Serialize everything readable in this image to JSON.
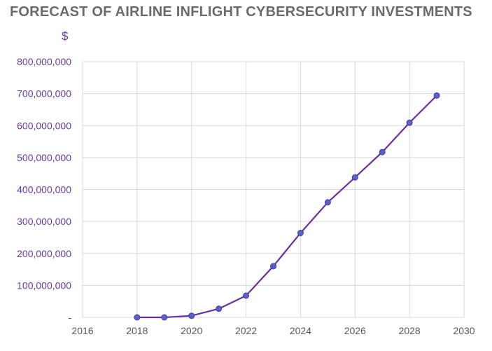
{
  "title": "FORECAST OF AIRLINE INFLIGHT CYBERSECURITY  INVESTMENTS",
  "chart_data": {
    "type": "line",
    "title": "FORECAST OF AIRLINE INFLIGHT CYBERSECURITY  INVESTMENTS",
    "ylabel": "$",
    "xlabel": "",
    "xlim": [
      2016,
      2030
    ],
    "ylim": [
      0,
      800000000
    ],
    "grid": true,
    "x_ticks": [
      2016,
      2018,
      2020,
      2022,
      2024,
      2026,
      2028,
      2030
    ],
    "x_tick_labels": [
      "2016",
      "2018",
      "2020",
      "2022",
      "2024",
      "2026",
      "2028",
      "2030"
    ],
    "y_ticks": [
      0,
      100000000,
      200000000,
      300000000,
      400000000,
      500000000,
      600000000,
      700000000,
      800000000
    ],
    "y_tick_labels": [
      "-",
      "100,000,000",
      "200,000,000",
      "300,000,000",
      "400,000,000",
      "500,000,000",
      "600,000,000",
      "700,000,000",
      "800,000,000"
    ],
    "series": [
      {
        "x": [
          2018,
          2019,
          2020,
          2021,
          2022,
          2023,
          2024,
          2025,
          2026,
          2027,
          2028,
          2029
        ],
        "values": [
          0,
          0,
          5000000,
          27000000,
          68000000,
          160000000,
          264000000,
          360000000,
          438000000,
          517000000,
          609000000,
          694000000
        ]
      }
    ],
    "colors": {
      "line": "#6b2fa0",
      "marker": "#5b5fc7",
      "marker_edge": "#3f3fa8",
      "grid": "#d9d9d9",
      "y_tick_text": "#6a3aa2",
      "x_tick_text": "#5a5a5a"
    }
  }
}
